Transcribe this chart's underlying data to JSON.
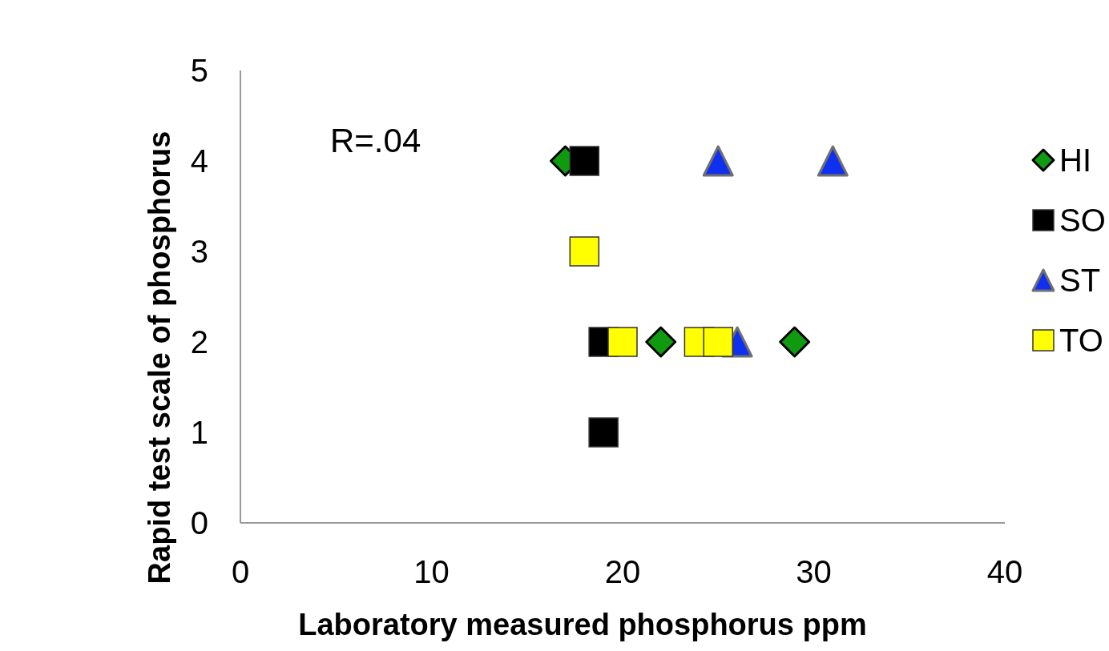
{
  "chart_data": {
    "type": "scatter",
    "xlabel": "Laboratory measured phosphorus ppm",
    "ylabel": "Rapid test scale of phosphorus",
    "xlim": [
      0,
      40
    ],
    "xticks": [
      0,
      10,
      20,
      30,
      40
    ],
    "ylim": [
      0,
      5
    ],
    "yticks": [
      0,
      1,
      2,
      3,
      4,
      5
    ],
    "annotations": [
      "R=.04"
    ],
    "legend": "right",
    "grid": false,
    "series": [
      {
        "name": "HI",
        "color": "#109a10",
        "marker": "diamond",
        "x": [
          17,
          22,
          29
        ],
        "values": [
          4,
          2,
          2
        ]
      },
      {
        "name": "SO",
        "color": "#000000",
        "marker": "square",
        "x": [
          18,
          19,
          19
        ],
        "values": [
          4,
          2,
          1
        ]
      },
      {
        "name": "ST",
        "color": "#1030f0",
        "marker": "triangle",
        "x": [
          25,
          31,
          26
        ],
        "values": [
          4,
          4,
          2
        ]
      },
      {
        "name": "TO",
        "color": "#ffff00",
        "marker": "square",
        "x": [
          18,
          20,
          24,
          25
        ],
        "values": [
          3,
          2,
          2,
          2
        ]
      }
    ]
  }
}
